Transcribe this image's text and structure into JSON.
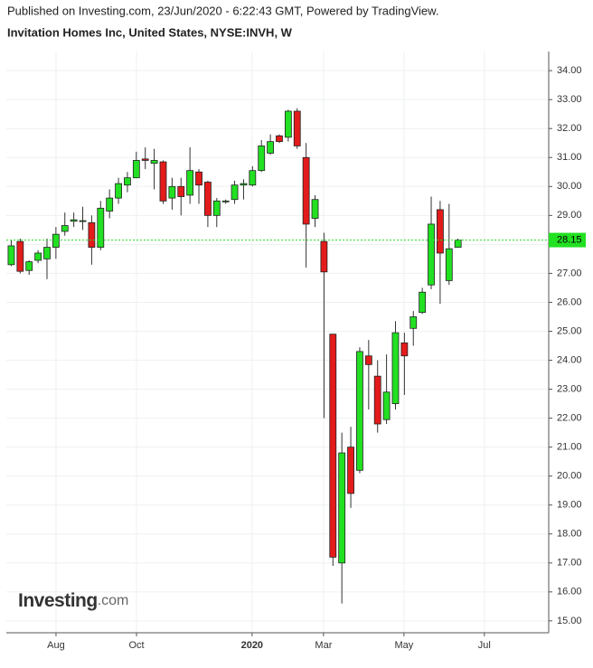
{
  "header": {
    "published": "Published on Investing.com, 23/Jun/2020 - 6:22:43 GMT, Powered by TradingView."
  },
  "logo": {
    "brand": "Investing",
    "suffix": ".com"
  },
  "chart_data": {
    "type": "candlestick",
    "title": "Invitation Homes Inc, United States, NYSE:INVH, W",
    "categories": [
      null,
      null,
      null,
      null,
      null,
      null,
      null,
      null,
      null,
      null,
      null,
      null,
      null,
      null,
      null,
      null,
      null,
      null,
      null,
      null,
      null,
      null,
      null,
      null,
      null,
      null,
      null,
      null,
      null,
      null,
      null,
      null,
      null,
      null,
      null,
      null,
      null,
      null,
      null,
      null,
      null,
      null,
      null,
      null,
      null,
      null,
      null,
      null,
      null,
      null,
      null
    ],
    "open": [
      27.3,
      28.1,
      27.1,
      27.45,
      27.5,
      27.9,
      28.45,
      28.8,
      28.8,
      28.75,
      27.9,
      29.15,
      29.6,
      30.05,
      30.3,
      30.95,
      30.8,
      30.85,
      29.6,
      30.0,
      29.7,
      30.5,
      30.15,
      29.0,
      29.5,
      29.55,
      30.05,
      30.05,
      30.55,
      31.15,
      31.75,
      31.7,
      32.6,
      31.0,
      28.9,
      28.1,
      24.9,
      17.0,
      21.0,
      20.2,
      24.15,
      23.45,
      21.95,
      22.5,
      24.6,
      25.1,
      25.65,
      26.6,
      29.2,
      26.75,
      27.9
    ],
    "high": [
      28.15,
      28.2,
      27.45,
      27.8,
      28.2,
      28.6,
      29.1,
      29.1,
      29.3,
      29.0,
      29.5,
      29.9,
      30.3,
      30.5,
      31.2,
      31.35,
      31.3,
      30.9,
      30.3,
      30.3,
      31.35,
      30.6,
      30.2,
      29.6,
      29.55,
      30.2,
      30.25,
      30.7,
      31.6,
      31.8,
      31.8,
      32.65,
      32.7,
      31.5,
      29.7,
      28.4,
      24.9,
      21.5,
      21.7,
      24.45,
      24.7,
      24.0,
      24.2,
      25.35,
      24.95,
      25.7,
      26.5,
      29.65,
      29.5,
      29.4,
      28.2
    ],
    "low": [
      27.25,
      27.0,
      26.95,
      27.35,
      26.8,
      27.5,
      28.3,
      28.6,
      28.5,
      27.3,
      27.8,
      28.9,
      29.4,
      29.8,
      30.3,
      30.6,
      29.9,
      29.4,
      29.2,
      29.0,
      29.4,
      29.4,
      28.6,
      28.6,
      29.4,
      29.4,
      29.55,
      30.0,
      30.5,
      31.1,
      31.5,
      31.55,
      31.3,
      27.2,
      28.6,
      22.0,
      16.9,
      15.6,
      18.9,
      20.1,
      22.3,
      21.5,
      21.8,
      22.3,
      22.8,
      24.5,
      25.6,
      26.45,
      25.95,
      26.6,
      27.9
    ],
    "close": [
      27.95,
      27.07,
      27.4,
      27.7,
      27.9,
      28.35,
      28.65,
      28.85,
      28.82,
      27.9,
      29.25,
      29.6,
      30.1,
      30.3,
      30.9,
      30.9,
      30.9,
      29.5,
      30.0,
      29.65,
      30.55,
      30.05,
      29.0,
      29.5,
      29.5,
      30.05,
      30.1,
      30.55,
      31.4,
      31.55,
      31.55,
      32.6,
      31.4,
      28.7,
      29.55,
      27.05,
      17.2,
      20.8,
      19.4,
      24.3,
      23.85,
      21.8,
      22.9,
      24.95,
      24.15,
      25.5,
      26.35,
      28.7,
      27.7,
      27.85,
      28.15
    ],
    "up_color": "#22e022",
    "down_color": "#e31b1b",
    "last_price": 28.15,
    "last_price_color": "#22e022",
    "xlim": [
      -0.5,
      60.2
    ],
    "xticks": [
      {
        "value": 5.06,
        "label": "Aug"
      },
      {
        "value": 14.07,
        "label": "Oct"
      },
      {
        "value": 27,
        "label": "2020"
      },
      {
        "value": 35,
        "label": "Mar"
      },
      {
        "value": 44,
        "label": "May"
      },
      {
        "value": 53,
        "label": "Jul"
      }
    ],
    "ylim": [
      14.59,
      34.66
    ],
    "yticks": [
      {
        "value": 15,
        "label": "15.00"
      },
      {
        "value": 16,
        "label": "16.00"
      },
      {
        "value": 17,
        "label": "17.00"
      },
      {
        "value": 18,
        "label": "18.00"
      },
      {
        "value": 19,
        "label": "19.00"
      },
      {
        "value": 20,
        "label": "20.00"
      },
      {
        "value": 21,
        "label": "21.00"
      },
      {
        "value": 22,
        "label": "22.00"
      },
      {
        "value": 23,
        "label": "23.00"
      },
      {
        "value": 24,
        "label": "24.00"
      },
      {
        "value": 25,
        "label": "25.00"
      },
      {
        "value": 26,
        "label": "26.00"
      },
      {
        "value": 27,
        "label": "27.00"
      },
      {
        "value": 28,
        "label": "28.00"
      },
      {
        "value": 29,
        "label": "29.00"
      },
      {
        "value": 30,
        "label": "30.00"
      },
      {
        "value": 31,
        "label": "31.00"
      },
      {
        "value": 32,
        "label": "32.00"
      },
      {
        "value": 33,
        "label": "33.00"
      },
      {
        "value": 34,
        "label": "34.00"
      }
    ],
    "grid": true
  }
}
